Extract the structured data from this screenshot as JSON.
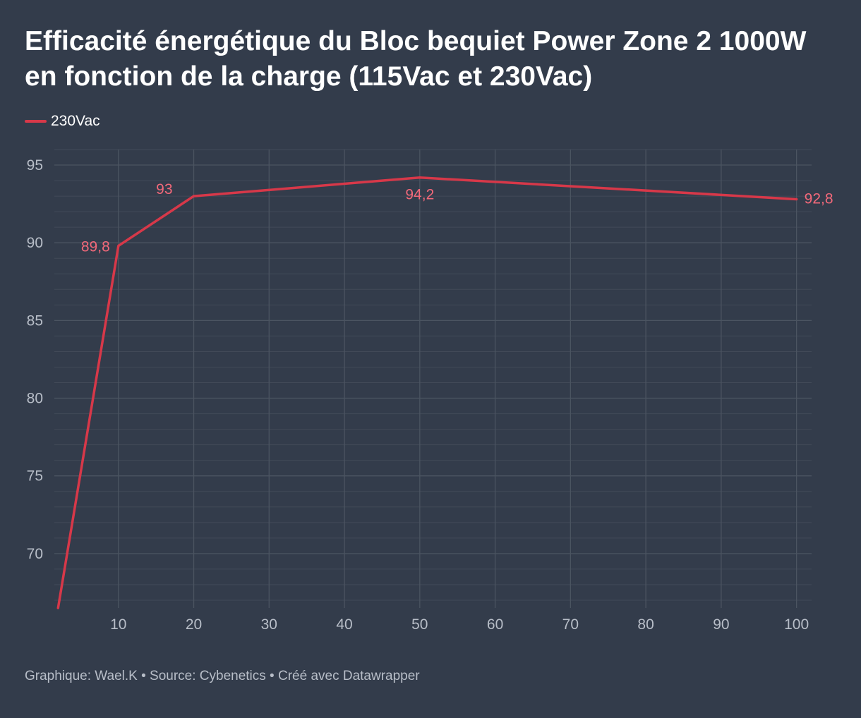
{
  "chart_data": {
    "type": "line",
    "title": "Efficacité énergétique du Bloc bequiet Power Zone 2 1000W en fonction de la charge (115Vac et 230Vac)",
    "xlabel": "",
    "ylabel": "",
    "x_ticks": [
      "10",
      "20",
      "30",
      "40",
      "50",
      "60",
      "70",
      "80",
      "90",
      "100"
    ],
    "x_tick_values": [
      10,
      20,
      30,
      40,
      50,
      60,
      70,
      80,
      90,
      100
    ],
    "y_ticks": [
      "70",
      "75",
      "80",
      "85",
      "90",
      "95"
    ],
    "y_tick_values": [
      70,
      75,
      80,
      85,
      90,
      95
    ],
    "xlim": [
      1.5,
      102
    ],
    "ylim": [
      66.5,
      96
    ],
    "grid": true,
    "legend_position": "top-left",
    "series": [
      {
        "name": "230Vac",
        "color": "#d73849",
        "label_color": "#f2697a",
        "x": [
          2,
          10,
          20,
          50,
          100
        ],
        "y": [
          66.5,
          89.8,
          93,
          94.2,
          92.8
        ],
        "labels": [
          "",
          "89,8",
          "93",
          "94,2",
          "92,8"
        ],
        "label_placement": [
          "none",
          "left",
          "above-left",
          "below",
          "right"
        ]
      }
    ]
  },
  "legend": {
    "items": [
      {
        "label": "230Vac",
        "color": "#d73849"
      }
    ]
  },
  "footer": {
    "credit": "Graphique: Wael.K • Source: Cybenetics • Créé avec Datawrapper"
  },
  "colors": {
    "background": "#333c4b",
    "grid": "#4b5461",
    "minor_grid": "#424a58",
    "tick_text": "#b8bec8"
  }
}
